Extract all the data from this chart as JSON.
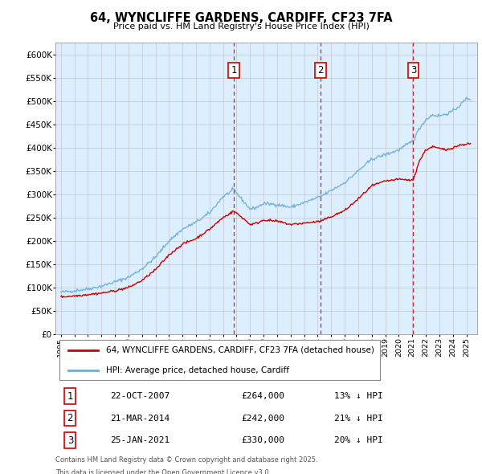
{
  "title": "64, WYNCLIFFE GARDENS, CARDIFF, CF23 7FA",
  "subtitle": "Price paid vs. HM Land Registry's House Price Index (HPI)",
  "ylabel_ticks": [
    "£0",
    "£50K",
    "£100K",
    "£150K",
    "£200K",
    "£250K",
    "£300K",
    "£350K",
    "£400K",
    "£450K",
    "£500K",
    "£550K",
    "£600K"
  ],
  "ytick_values": [
    0,
    50000,
    100000,
    150000,
    200000,
    250000,
    300000,
    350000,
    400000,
    450000,
    500000,
    550000,
    600000
  ],
  "ylim": [
    0,
    625000
  ],
  "xlim_start": 1994.6,
  "xlim_end": 2025.8,
  "transactions": [
    {
      "id": 1,
      "date": "22-OCT-2007",
      "price": 264000,
      "pct_below": "13%",
      "x": 2007.8
    },
    {
      "id": 2,
      "date": "21-MAR-2014",
      "price": 242000,
      "pct_below": "21%",
      "x": 2014.22
    },
    {
      "id": 3,
      "date": "25-JAN-2021",
      "price": 330000,
      "pct_below": "20%",
      "x": 2021.07
    }
  ],
  "legend_property": "64, WYNCLIFFE GARDENS, CARDIFF, CF23 7FA (detached house)",
  "legend_hpi": "HPI: Average price, detached house, Cardiff",
  "property_color": "#cc0000",
  "hpi_color": "#6baed6",
  "background_color": "#ddeeff",
  "plot_bg": "#ffffff",
  "grid_color": "#bbbbbb",
  "marker_box_color": "#cc0000",
  "vline_color": "#cc0000",
  "footnote1": "Contains HM Land Registry data © Crown copyright and database right 2025.",
  "footnote2": "This data is licensed under the Open Government Licence v3.0."
}
